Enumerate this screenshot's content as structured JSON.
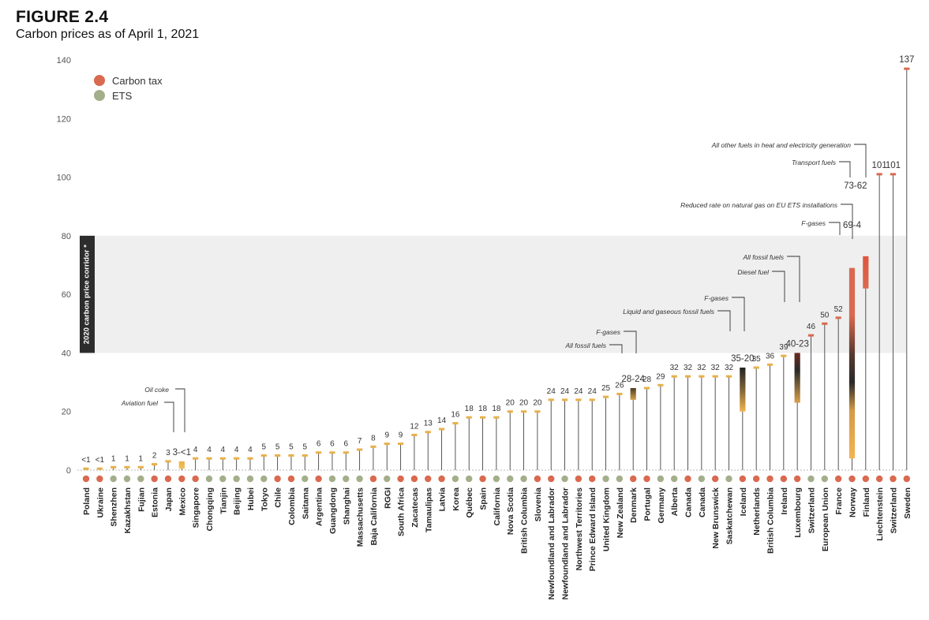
{
  "figure": {
    "label": "FIGURE 2.4",
    "title": "Carbon prices as of April 1, 2021"
  },
  "legend": {
    "carbon_tax": "Carbon tax",
    "ets": "ETS"
  },
  "corridor_label": "2020 carbon price corridor *",
  "colors": {
    "carbon_tax": "#d9694f",
    "ets": "#a3ae8a",
    "marker": "#e8b04b",
    "stem": "#444444",
    "corridor": "#efefef",
    "corridor_label_bg": "#2d2d2d"
  },
  "chart_data": {
    "type": "bar",
    "ylim": [
      0,
      140
    ],
    "yticks": [
      0,
      20,
      40,
      60,
      80,
      100,
      120,
      140
    ],
    "corridor": [
      40,
      80
    ],
    "grid": false,
    "legend_position": "top-left",
    "series_names": {
      "tax": "Carbon tax",
      "ets": "ETS"
    },
    "categories": [
      {
        "name": "Poland",
        "type": "tax",
        "value": 0.5,
        "label": "<1"
      },
      {
        "name": "Ukraine",
        "type": "tax",
        "value": 0.5,
        "label": "<1"
      },
      {
        "name": "Shenzhen",
        "type": "ets",
        "value": 1,
        "label": "1"
      },
      {
        "name": "Kazakhstan",
        "type": "ets",
        "value": 1,
        "label": "1"
      },
      {
        "name": "Fujian",
        "type": "ets",
        "value": 1,
        "label": "1"
      },
      {
        "name": "Estonia",
        "type": "tax",
        "value": 2,
        "label": "2"
      },
      {
        "name": "Japan",
        "type": "tax",
        "value": 3,
        "label": "3"
      },
      {
        "name": "Mexico",
        "type": "tax",
        "range": [
          0.5,
          3
        ],
        "label": "3-<1",
        "gradient": "mexico",
        "annotations": [
          "Oil coke",
          "Aviation fuel"
        ]
      },
      {
        "name": "Singapore",
        "type": "tax",
        "value": 4,
        "label": "4"
      },
      {
        "name": "Chongqing",
        "type": "ets",
        "value": 4,
        "label": "4"
      },
      {
        "name": "Tianjin",
        "type": "ets",
        "value": 4,
        "label": "4"
      },
      {
        "name": "Beijing",
        "type": "ets",
        "value": 4,
        "label": "4"
      },
      {
        "name": "Hubei",
        "type": "ets",
        "value": 4,
        "label": "4"
      },
      {
        "name": "Tokyo",
        "type": "ets",
        "value": 5,
        "label": "5"
      },
      {
        "name": "Chile",
        "type": "tax",
        "value": 5,
        "label": "5"
      },
      {
        "name": "Colombia",
        "type": "tax",
        "value": 5,
        "label": "5"
      },
      {
        "name": "Saitama",
        "type": "ets",
        "value": 5,
        "label": "5"
      },
      {
        "name": "Argentina",
        "type": "tax",
        "value": 6,
        "label": "6"
      },
      {
        "name": "Guangdong",
        "type": "ets",
        "value": 6,
        "label": "6"
      },
      {
        "name": "Shanghai",
        "type": "ets",
        "value": 6,
        "label": "6"
      },
      {
        "name": "Massachusetts",
        "type": "ets",
        "value": 7,
        "label": "7"
      },
      {
        "name": "Baja California",
        "type": "tax",
        "value": 8,
        "label": "8"
      },
      {
        "name": "RGGI",
        "type": "ets",
        "value": 9,
        "label": "9"
      },
      {
        "name": "South Africa",
        "type": "tax",
        "value": 9,
        "label": "9"
      },
      {
        "name": "Zacatecas",
        "type": "tax",
        "value": 12,
        "label": "12"
      },
      {
        "name": "Tamaulipas",
        "type": "tax",
        "value": 13,
        "label": "13"
      },
      {
        "name": "Latvia",
        "type": "tax",
        "value": 14,
        "label": "14"
      },
      {
        "name": "Korea",
        "type": "ets",
        "value": 16,
        "label": "16"
      },
      {
        "name": "Québec",
        "type": "ets",
        "value": 18,
        "label": "18"
      },
      {
        "name": "Spain",
        "type": "tax",
        "value": 18,
        "label": "18"
      },
      {
        "name": "California",
        "type": "ets",
        "value": 18,
        "label": "18"
      },
      {
        "name": "Nova Scotia",
        "type": "ets",
        "value": 20,
        "label": "20"
      },
      {
        "name": "British Columbia",
        "type": "ets",
        "value": 20,
        "label": "20"
      },
      {
        "name": "Slovenia",
        "type": "tax",
        "value": 20,
        "label": "20"
      },
      {
        "name": "Newfoundland and Labrador",
        "type": "tax",
        "value": 24,
        "label": "24"
      },
      {
        "name": "Newfoundland and Labrador",
        "type": "ets",
        "value": 24,
        "label": "24"
      },
      {
        "name": "Northwest Territories",
        "type": "tax",
        "value": 24,
        "label": "24"
      },
      {
        "name": "Prince Edward Island",
        "type": "tax",
        "value": 24,
        "label": "24"
      },
      {
        "name": "United Kingdom",
        "type": "ets",
        "value": 25,
        "label": "25"
      },
      {
        "name": "New Zealand",
        "type": "ets",
        "value": 26,
        "label": "26"
      },
      {
        "name": "Denmark",
        "type": "tax",
        "range": [
          24,
          28
        ],
        "label": "28-24",
        "gradient": "denmark",
        "annotations": [
          "F-gases",
          "All fossil fuels"
        ]
      },
      {
        "name": "Portugal",
        "type": "tax",
        "value": 28,
        "label": "28"
      },
      {
        "name": "Germany",
        "type": "ets",
        "value": 29,
        "label": "29"
      },
      {
        "name": "Alberta",
        "type": "ets",
        "value": 32,
        "label": "32"
      },
      {
        "name": "Canada",
        "type": "tax",
        "value": 32,
        "label": "32"
      },
      {
        "name": "Canada",
        "type": "ets",
        "value": 32,
        "label": "32"
      },
      {
        "name": "New Brunswick",
        "type": "tax",
        "value": 32,
        "label": "32"
      },
      {
        "name": "Saskatchewan",
        "type": "ets",
        "value": 32,
        "label": "32"
      },
      {
        "name": "Iceland",
        "type": "tax",
        "range": [
          20,
          35
        ],
        "label": "35-20",
        "gradient": "iceland",
        "annotations": [
          "F-gases",
          "Liquid and gaseous fossil fuels"
        ]
      },
      {
        "name": "Netherlands",
        "type": "tax",
        "value": 35,
        "label": "35"
      },
      {
        "name": "British Columbia",
        "type": "tax",
        "value": 36,
        "label": "36"
      },
      {
        "name": "Ireland",
        "type": "tax",
        "value": 39,
        "label": "39"
      },
      {
        "name": "Luxembourg",
        "type": "tax",
        "range": [
          23,
          40
        ],
        "label": "40-23",
        "gradient": "luxembourg",
        "annotations": [
          "All fossil fuels",
          "Diesel fuel"
        ]
      },
      {
        "name": "Switzerland",
        "type": "ets",
        "value": 46,
        "label": "46"
      },
      {
        "name": "European Union",
        "type": "ets",
        "value": 50,
        "label": "50"
      },
      {
        "name": "France",
        "type": "tax",
        "value": 52,
        "label": "52"
      },
      {
        "name": "Norway",
        "type": "tax",
        "range": [
          4,
          69
        ],
        "label": "69-4",
        "gradient": "norway",
        "annotations": [
          "F-gases",
          "Reduced rate on natural gas on EU ETS installations"
        ]
      },
      {
        "name": "Finland",
        "type": "tax",
        "range": [
          62,
          73
        ],
        "label": "73-62",
        "gradient": "finland",
        "annotations": [
          "Transport fuels",
          "All other fuels in heat and electricity generation"
        ]
      },
      {
        "name": "Liechtenstein",
        "type": "tax",
        "value": 101,
        "label": "101"
      },
      {
        "name": "Switzerland",
        "type": "tax",
        "value": 101,
        "label": "101"
      },
      {
        "name": "Sweden",
        "type": "tax",
        "value": 137,
        "label": "137"
      }
    ]
  }
}
